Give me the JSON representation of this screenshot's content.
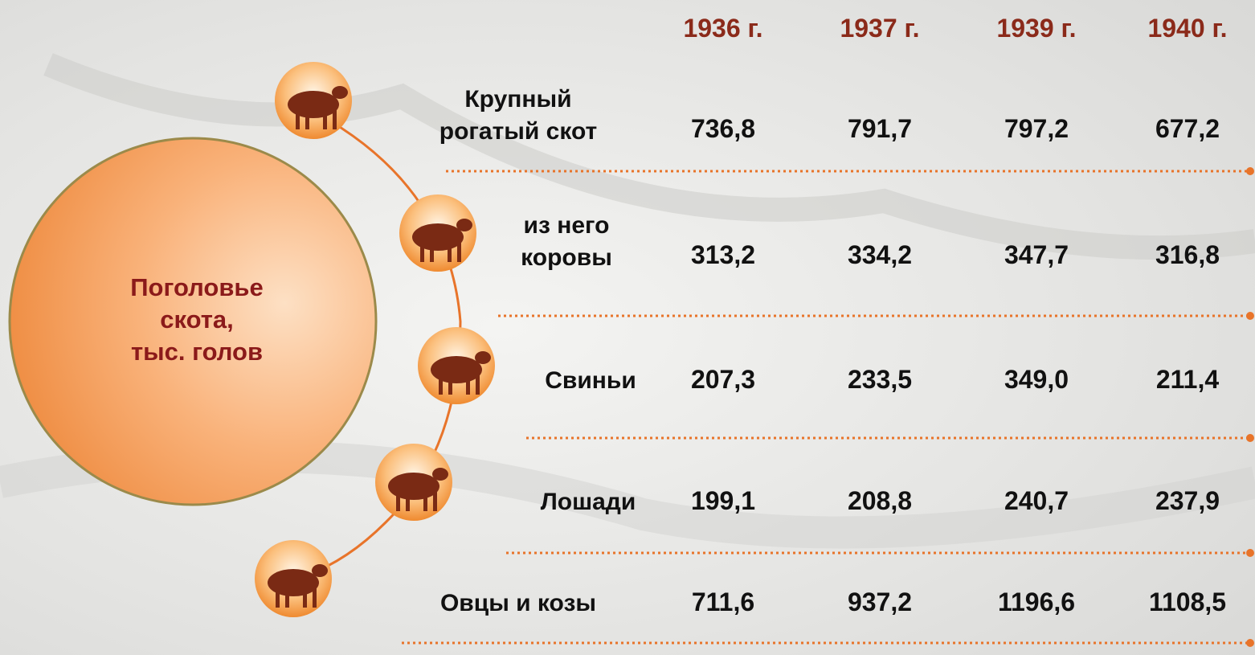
{
  "title": "Поголовье\nскота,\nтыс. голов",
  "table": {
    "columns": [
      "1936 г.",
      "1937 г.",
      "1939 г.",
      "1940 г."
    ],
    "rows": [
      {
        "label": "Крупный\nрогатый скот",
        "values": [
          "736,8",
          "791,7",
          "797,2",
          "677,2"
        ]
      },
      {
        "label": "из него\nкоровы",
        "values": [
          "313,2",
          "334,2",
          "347,7",
          "316,8"
        ]
      },
      {
        "label": "Свиньи",
        "values": [
          "207,3",
          "233,5",
          "349,0",
          "211,4"
        ]
      },
      {
        "label": "Лошади",
        "values": [
          "199,1",
          "208,8",
          "240,7",
          "237,9"
        ]
      },
      {
        "label": "Овцы и козы",
        "values": [
          "711,6",
          "937,2",
          "1196,6",
          "1108,5"
        ]
      }
    ]
  }
}
